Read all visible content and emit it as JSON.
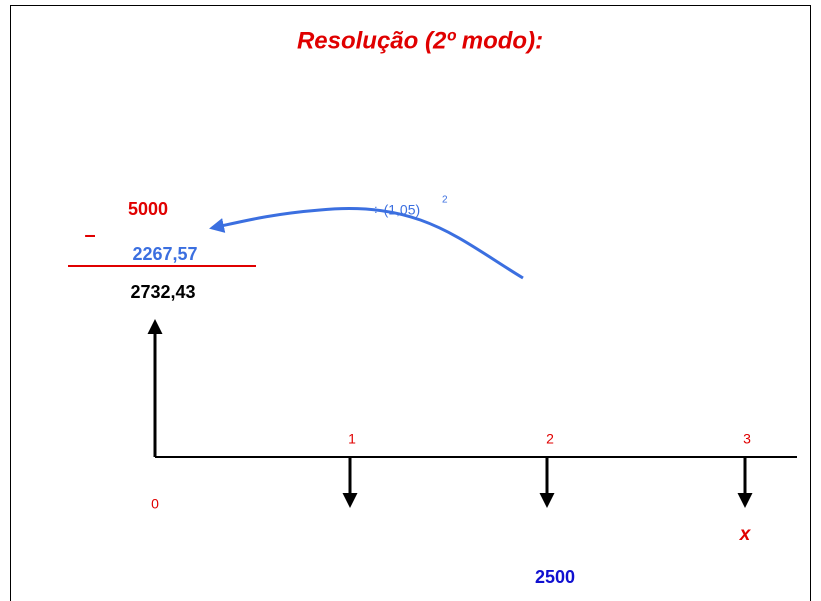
{
  "title": "Resolução (2º modo):",
  "calculation": {
    "minuend": "5000",
    "operator": "–",
    "subtrahend": "2267,57",
    "result": "2732,43"
  },
  "discount": {
    "label": "÷ (1,05)",
    "exponent": "2"
  },
  "timeline": {
    "periods": [
      "0",
      "1",
      "2",
      "3"
    ],
    "unknown": "x",
    "payment": "2500"
  }
}
